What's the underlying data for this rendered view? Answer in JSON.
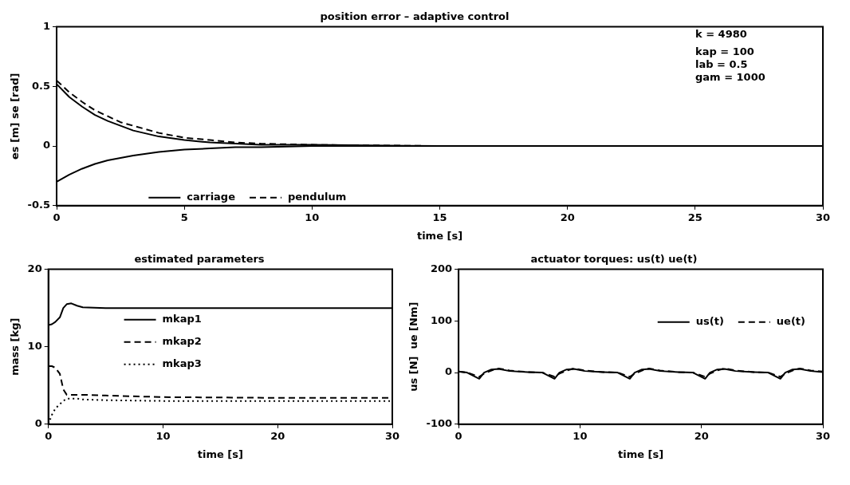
{
  "chart_data": [
    {
      "type": "line",
      "title": "position error – adaptive control",
      "xlabel": "time [s]",
      "ylabel": "es [m] se [rad]",
      "xlim": [
        0,
        30
      ],
      "xticks": [
        0,
        5,
        10,
        15,
        20,
        25,
        30
      ],
      "ylim": [
        -0.5,
        1
      ],
      "yticks": [
        -0.5,
        0,
        0.5,
        1
      ],
      "grid": false,
      "legend": "bottom",
      "annotations": [
        "k = 4980",
        "kap = 100",
        "lab = 0.5",
        "gam = 1000"
      ],
      "x": [
        0,
        0.5,
        1,
        1.5,
        2,
        2.5,
        3,
        4,
        5,
        6,
        7,
        8,
        10,
        15,
        20,
        25,
        30
      ],
      "series": [
        {
          "name": "carriage",
          "color": "#000000",
          "line_style": "solid",
          "values": [
            0.52,
            0.41,
            0.33,
            0.26,
            0.21,
            0.17,
            0.13,
            0.08,
            0.05,
            0.03,
            0.02,
            0.01,
            0.01,
            0,
            0,
            0,
            0
          ]
        },
        {
          "name": "pendulum",
          "color": "#000000",
          "line_style": "dashed",
          "values": [
            0.55,
            0.45,
            0.37,
            0.3,
            0.25,
            0.2,
            0.17,
            0.11,
            0.07,
            0.05,
            0.03,
            0.02,
            0.01,
            0,
            0,
            0,
            0
          ]
        },
        {
          "color": "#000000",
          "line_style": "solid",
          "values": [
            -0.3,
            -0.24,
            -0.19,
            -0.15,
            -0.12,
            -0.1,
            -0.08,
            -0.05,
            -0.03,
            -0.02,
            -0.01,
            -0.01,
            0,
            0,
            0,
            0,
            0
          ]
        }
      ]
    },
    {
      "type": "line",
      "title": "estimated parameters",
      "xlabel": "time [s]",
      "ylabel": "mass [kg]",
      "xlim": [
        0,
        30
      ],
      "xticks": [
        0,
        10,
        20,
        30
      ],
      "ylim": [
        0,
        20
      ],
      "yticks": [
        0,
        10,
        20
      ],
      "grid": false,
      "legend": "left",
      "x": [
        0,
        0.3,
        0.6,
        1,
        1.3,
        1.6,
        2,
        2.5,
        3,
        5,
        10,
        20,
        30
      ],
      "series": [
        {
          "name": "mkap1",
          "color": "#000000",
          "line_style": "solid",
          "values": [
            12.8,
            12.9,
            13.2,
            13.8,
            15,
            15.5,
            15.6,
            15.3,
            15.1,
            15,
            15,
            15,
            15
          ]
        },
        {
          "name": "mkap2",
          "color": "#000000",
          "line_style": "dashed",
          "values": [
            7.5,
            7.5,
            7.3,
            6.5,
            4.5,
            3.8,
            3.8,
            3.8,
            3.8,
            3.7,
            3.5,
            3.4,
            3.4
          ]
        },
        {
          "name": "mkap3",
          "color": "#000000",
          "line_style": "dotted",
          "values": [
            0,
            1.2,
            2,
            2.6,
            3,
            3.3,
            3.3,
            3.3,
            3.2,
            3.1,
            3,
            3,
            3
          ]
        }
      ]
    },
    {
      "type": "line",
      "title": "actuator torques: us(t) ue(t)",
      "xlabel": "time [s]",
      "ylabel": "us [N]  ue [Nm]",
      "xlim": [
        0,
        30
      ],
      "xticks": [
        0,
        10,
        20,
        30
      ],
      "ylim": [
        -100,
        200
      ],
      "yticks": [
        -100,
        0,
        100,
        200
      ],
      "grid": false,
      "legend": "right",
      "x": [
        0,
        0.7,
        1.7,
        2.1,
        2.7,
        3.3,
        4.2,
        5.7,
        6.9,
        7.9,
        8.3,
        8.9,
        9.5,
        10.4,
        11.9,
        13.1,
        14.1,
        14.5,
        15.1,
        15.7,
        16.6,
        18.1,
        19.3,
        20.3,
        20.7,
        21.3,
        21.9,
        22.8,
        24.3,
        25.5,
        26.5,
        26.9,
        27.5,
        28.1,
        29,
        30
      ],
      "series": [
        {
          "name": "us(t)",
          "color": "#000000",
          "line_style": "solid",
          "values": [
            2,
            0,
            -12,
            0,
            6,
            7,
            3,
            1,
            0,
            -12,
            0,
            6,
            7,
            3,
            1,
            0,
            -12,
            0,
            6,
            7,
            3,
            1,
            0,
            -12,
            0,
            6,
            7,
            3,
            1,
            0,
            -12,
            0,
            6,
            7,
            3,
            1
          ]
        },
        {
          "name": "ue(t)",
          "color": "#000000",
          "line_style": "dashed",
          "values": [
            2,
            0,
            -8,
            -2,
            4,
            8,
            4,
            1,
            0,
            -8,
            -2,
            4,
            8,
            4,
            1,
            0,
            -8,
            -2,
            4,
            8,
            4,
            1,
            0,
            -8,
            -2,
            4,
            8,
            4,
            1,
            0,
            -8,
            -2,
            4,
            8,
            4,
            2
          ]
        }
      ]
    }
  ]
}
